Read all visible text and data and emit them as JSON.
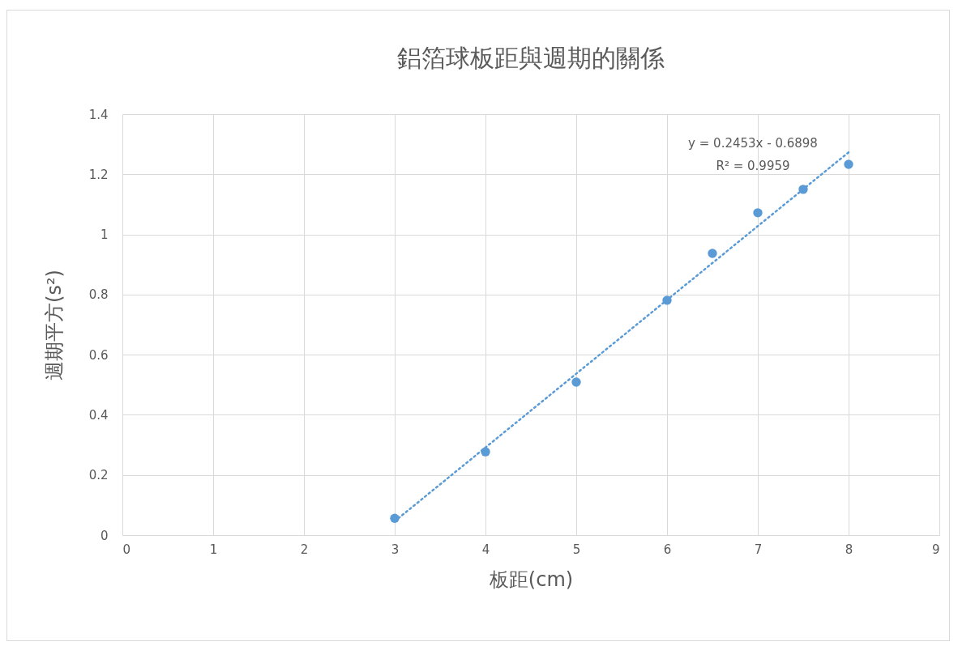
{
  "chart_data": {
    "type": "scatter",
    "title": "鋁箔球板距與週期的關係",
    "xlabel": "板距(cm)",
    "ylabel": "週期平方(s²)",
    "x": [
      3,
      4,
      5,
      6,
      6.5,
      7,
      7.5,
      8
    ],
    "series": [
      {
        "color": "#5b9bd5",
        "marker": "circle",
        "values": [
          0.056,
          0.277,
          0.509,
          0.781,
          0.937,
          1.072,
          1.15,
          1.233
        ]
      },
      {
        "type": "line",
        "x": [
          3,
          8
        ],
        "values": [
          0.046,
          1.273
        ],
        "color": "#5b9bd5",
        "line_style": "dotted",
        "marker": "none"
      }
    ],
    "xlim": [
      0,
      9
    ],
    "xticks": [
      0,
      1,
      2,
      3,
      4,
      5,
      6,
      7,
      8,
      9
    ],
    "ylim": [
      0,
      1.4
    ],
    "yticks": [
      0,
      0.2,
      0.4,
      0.6,
      0.8,
      1,
      1.2,
      1.4
    ],
    "grid": true,
    "annotations": [
      "y = 0.2453x - 0.6898",
      "R² = 0.9959"
    ]
  }
}
